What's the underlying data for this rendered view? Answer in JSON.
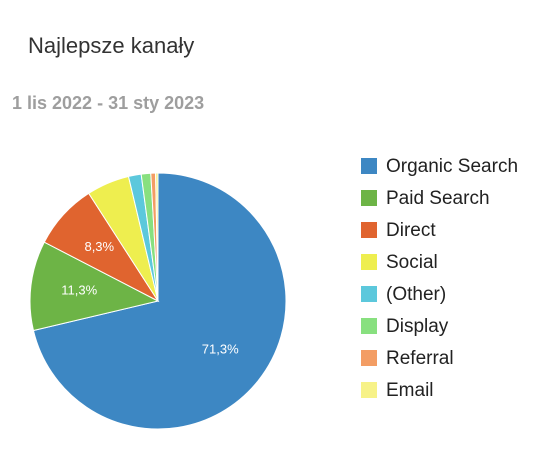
{
  "chart_data": {
    "type": "pie",
    "title": "Najlepsze kanały",
    "subtitle": "1 lis 2022 - 31 sty 2023",
    "categories": [
      "Organic Search",
      "Paid Search",
      "Direct",
      "Social",
      "(Other)",
      "Display",
      "Referral",
      "Email"
    ],
    "values": [
      71.3,
      11.3,
      8.3,
      5.4,
      1.6,
      1.2,
      0.6,
      0.3
    ],
    "value_labels": [
      "71,3%",
      "11,3%",
      "8,3%",
      null,
      null,
      null,
      null,
      null
    ],
    "colors": [
      "#3d87c3",
      "#6db446",
      "#e0642f",
      "#eeee4f",
      "#5cc8dc",
      "#88e07f",
      "#f39d64",
      "#f7f288"
    ],
    "legend": "right"
  }
}
